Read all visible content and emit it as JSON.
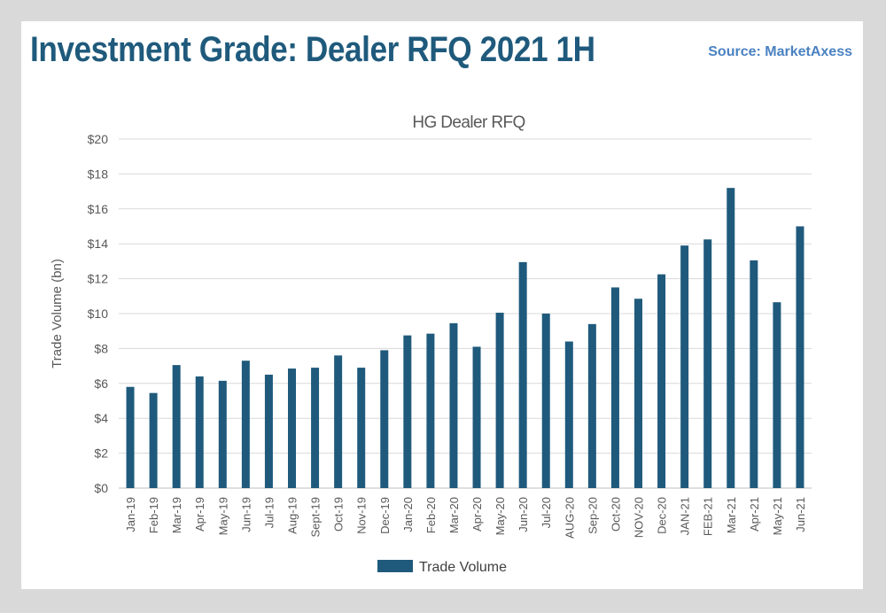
{
  "header": {
    "title": "Investment Grade: Dealer RFQ 2021 1H",
    "source": "Source: MarketAxess"
  },
  "colors": {
    "bar": "#1f5a7c",
    "grid": "#d9d9d9",
    "title": "#1f5a7c",
    "source": "#4a82c0"
  },
  "chart_data": {
    "type": "bar",
    "title": "HG Dealer  RFQ",
    "xlabel": "",
    "ylabel": "Trade Volume (bn)",
    "ylim": [
      0,
      20
    ],
    "yticks": [
      0,
      2,
      4,
      6,
      8,
      10,
      12,
      14,
      16,
      18,
      20
    ],
    "ytick_labels": [
      "$0",
      "$2",
      "$4",
      "$6",
      "$8",
      "$10",
      "$12",
      "$14",
      "$16",
      "$18",
      "$20"
    ],
    "grid": true,
    "legend": "bottom",
    "categories": [
      "Jan-19",
      "Feb-19",
      "Mar-19",
      "Apr-19",
      "May-19",
      "Jun-19",
      "Jul-19",
      "Aug-19",
      "Sept-19",
      "Oct-19",
      "Nov-19",
      "Dec-19",
      "Jan-20",
      "Feb-20",
      "Mar-20",
      "Apr-20",
      "May-20",
      "Jun-20",
      "Jul-20",
      "AUG-20",
      "Sep-20",
      "Oct-20",
      "NOV-20",
      "Dec-20",
      "JAN-21",
      "FEB-21",
      "Mar-21",
      "Apr-21",
      "May-21",
      "Jun-21"
    ],
    "series": [
      {
        "name": "Trade Volume",
        "values": [
          5.8,
          5.45,
          7.05,
          6.4,
          6.15,
          7.3,
          6.5,
          6.85,
          6.9,
          7.6,
          6.9,
          7.9,
          8.75,
          8.85,
          9.45,
          8.1,
          10.05,
          12.95,
          10.0,
          8.4,
          9.4,
          11.5,
          10.85,
          12.25,
          13.9,
          14.25,
          17.2,
          13.05,
          10.65,
          15.0
        ]
      }
    ]
  }
}
